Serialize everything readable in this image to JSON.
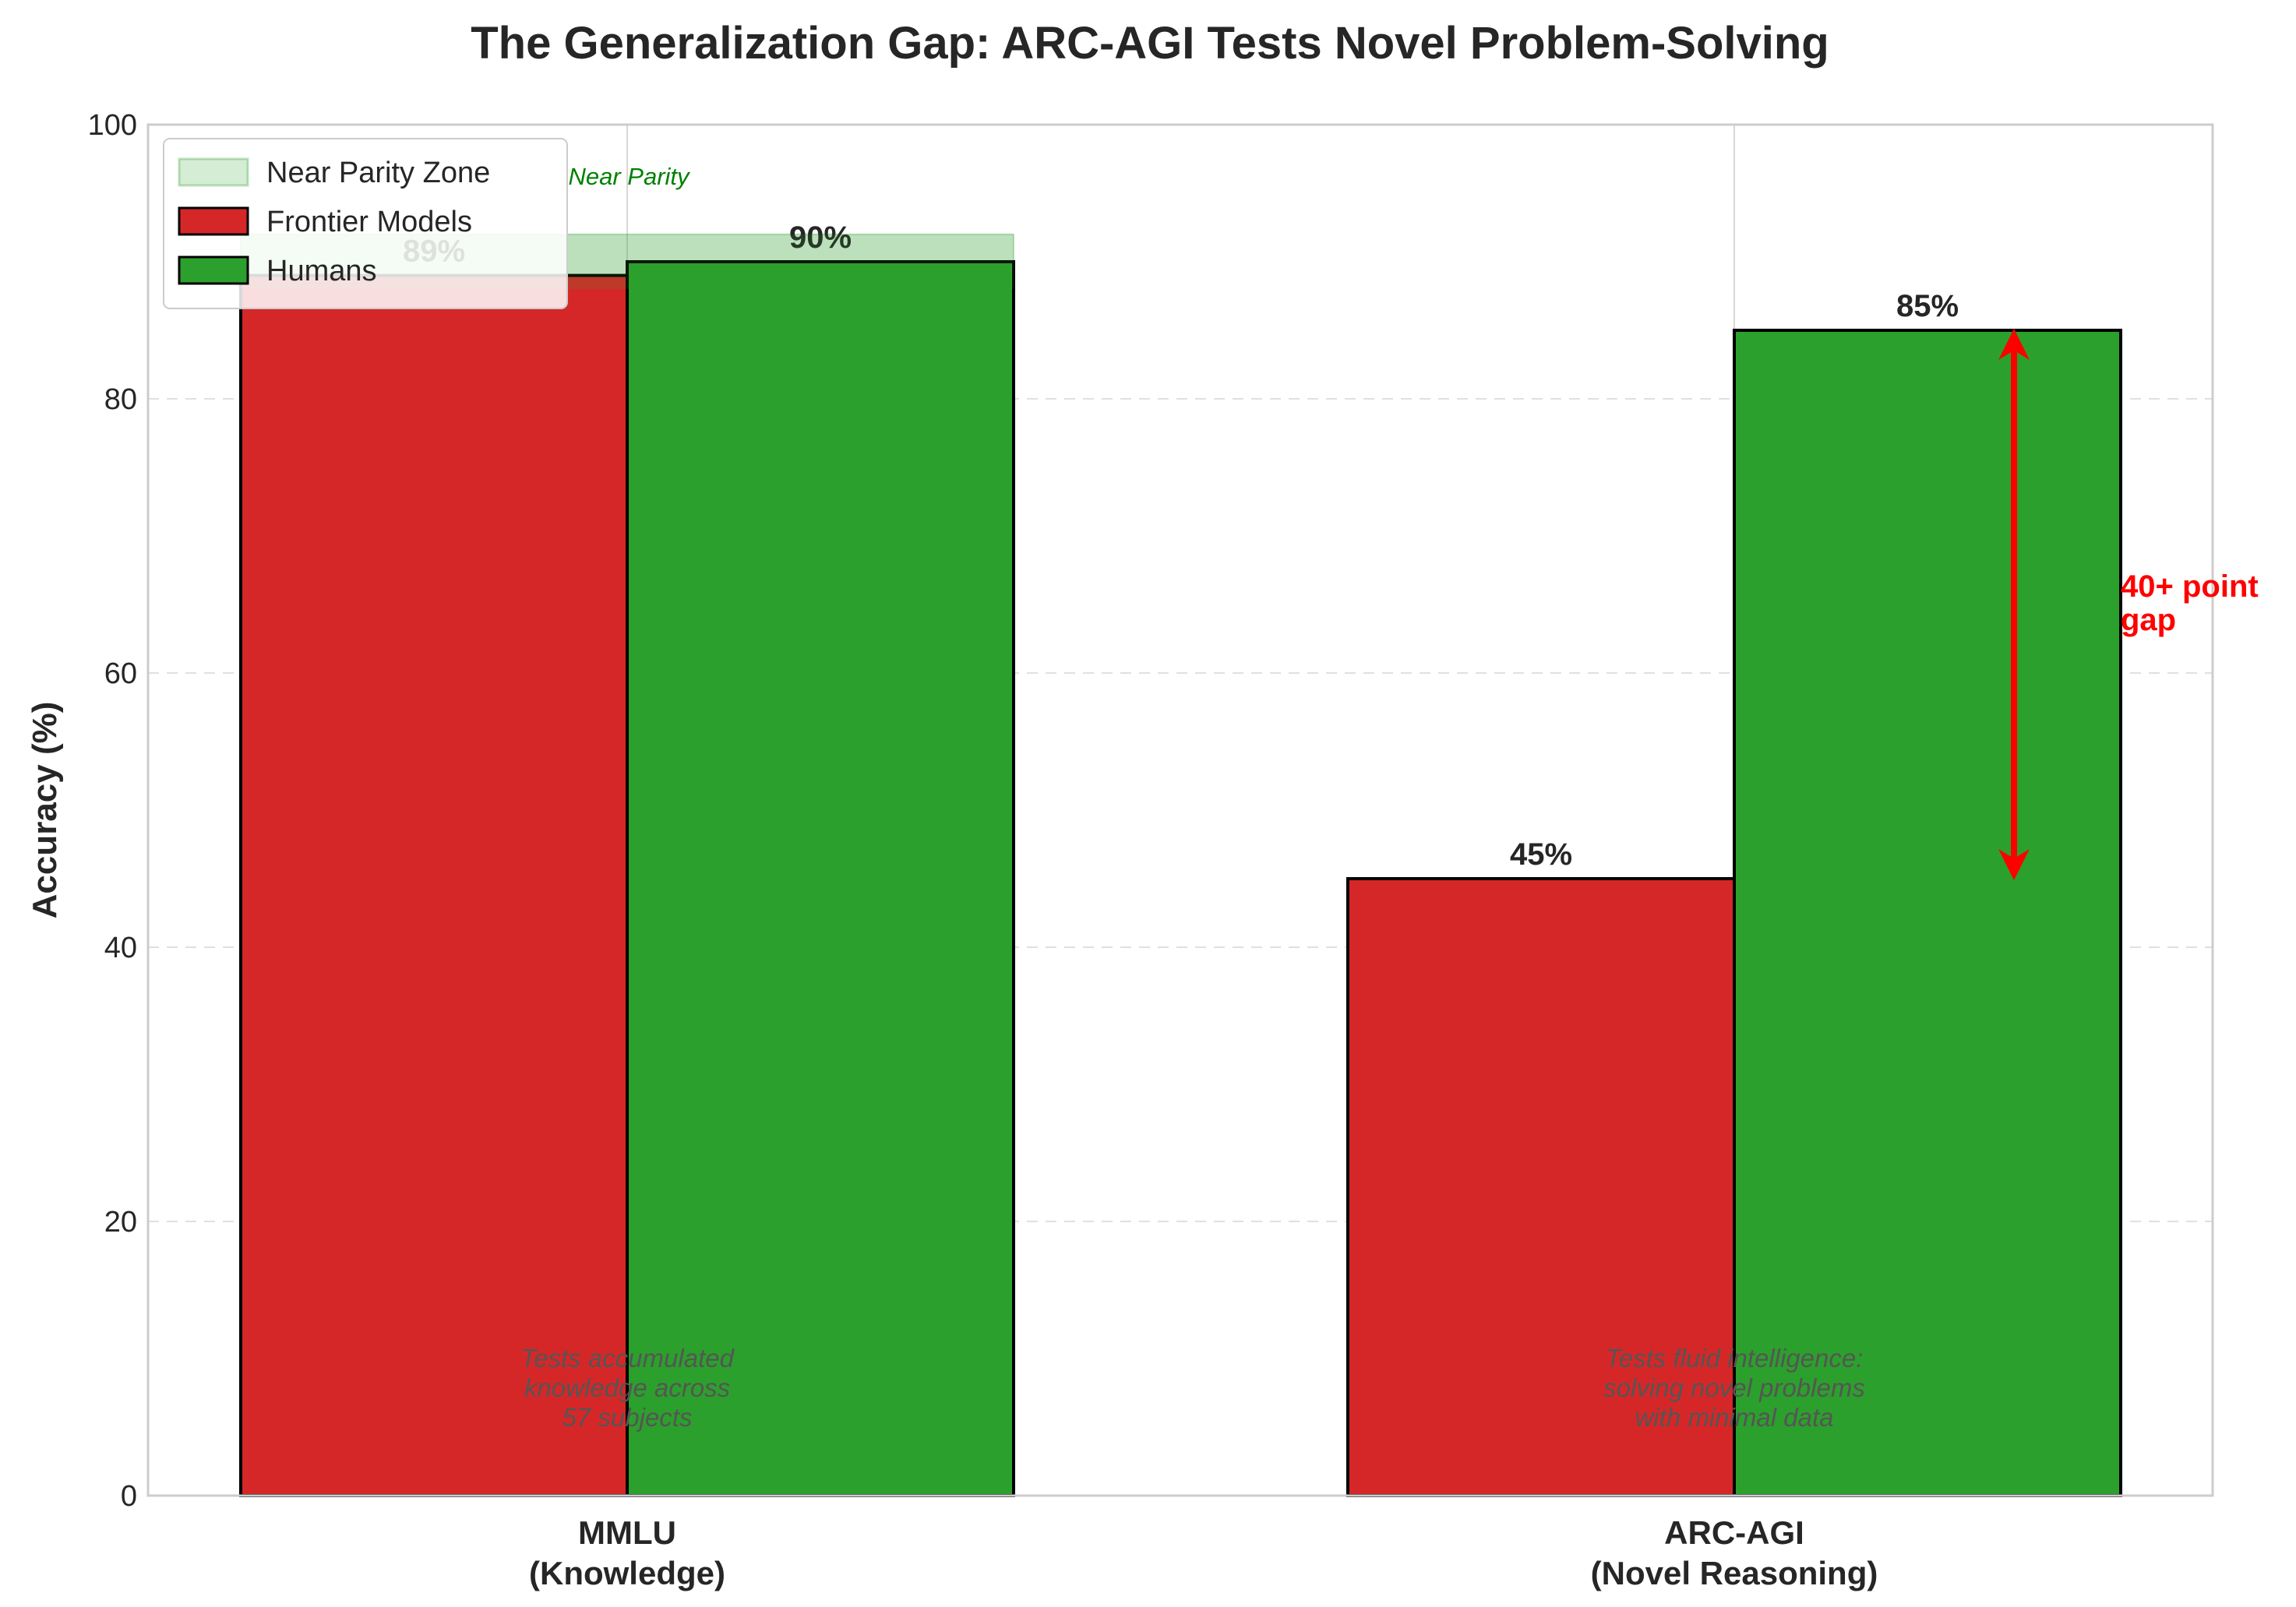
{
  "chart_data": {
    "type": "bar",
    "title": "The Generalization Gap: ARC-AGI Tests Novel Problem-Solving",
    "xlabel": "",
    "ylabel": "Accuracy (%)",
    "ylim": [
      0,
      100
    ],
    "yticks": [
      0,
      20,
      40,
      60,
      80,
      100
    ],
    "grid": true,
    "categories": [
      {
        "name": "MMLU",
        "subtitle": "(Knowledge)",
        "description": [
          "Tests accumulated",
          "knowledge across",
          "57 subjects"
        ]
      },
      {
        "name": "ARC-AGI",
        "subtitle": "(Novel Reasoning)",
        "description": [
          "Tests fluid intelligence:",
          "solving novel problems",
          "with minimal data"
        ]
      }
    ],
    "series": [
      {
        "name": "Frontier Models",
        "color": "#d62728",
        "values": [
          89,
          45
        ],
        "labels": [
          "89%",
          "45%"
        ]
      },
      {
        "name": "Humans",
        "color": "#2ca02c",
        "values": [
          90,
          85
        ],
        "labels": [
          "90%",
          "85%"
        ]
      }
    ],
    "bands": [
      {
        "name": "Near Parity Zone",
        "ymin": 88,
        "ymax": 92,
        "color": "#2ca02c",
        "label": "Near Parity"
      }
    ],
    "annotations": [
      {
        "type": "arrow",
        "from": 45,
        "to": 85,
        "color": "#ff0000",
        "label": [
          "40+ point",
          "gap"
        ]
      }
    ],
    "legend": {
      "position": "top-left",
      "entries": [
        "Near Parity Zone",
        "Frontier Models",
        "Humans"
      ]
    }
  }
}
